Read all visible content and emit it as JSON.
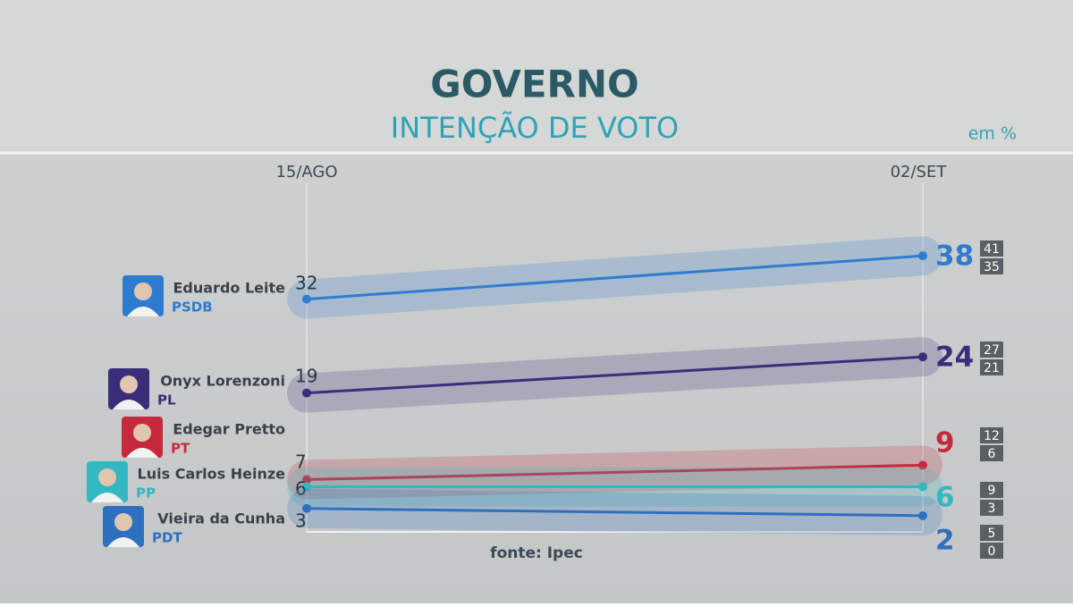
{
  "chart_data": {
    "type": "line",
    "title": "GOVERNO",
    "subtitle": "INTENÇÃO DE VOTO",
    "unit_note": "em %",
    "source": "fonte: Ipec",
    "categories": [
      "15/AGO",
      "02/SET"
    ],
    "ylim": [
      0,
      40
    ],
    "series": [
      {
        "name": "Eduardo Leite",
        "party": "PSDB",
        "color": "#2f7bd0",
        "values": [
          32,
          38
        ],
        "margin": {
          "high": 41,
          "low": 35
        }
      },
      {
        "name": "Onyx Lorenzoni",
        "party": "PL",
        "color": "#3a2d7a",
        "values": [
          19,
          24
        ],
        "margin": {
          "high": 27,
          "low": 21
        }
      },
      {
        "name": "Edegar Pretto",
        "party": "PT",
        "color": "#c8283c",
        "values": [
          7,
          9
        ],
        "margin": {
          "high": 12,
          "low": 6
        }
      },
      {
        "name": "Luis Carlos Heinze",
        "party": "PP",
        "color": "#33b7c0",
        "values": [
          6,
          6
        ],
        "margin": {
          "high": 9,
          "low": 3
        }
      },
      {
        "name": "Vieira da Cunha",
        "party": "PDT",
        "color": "#2f6fc0",
        "values": [
          3,
          2
        ],
        "margin": {
          "high": 5,
          "low": 0
        }
      }
    ]
  }
}
